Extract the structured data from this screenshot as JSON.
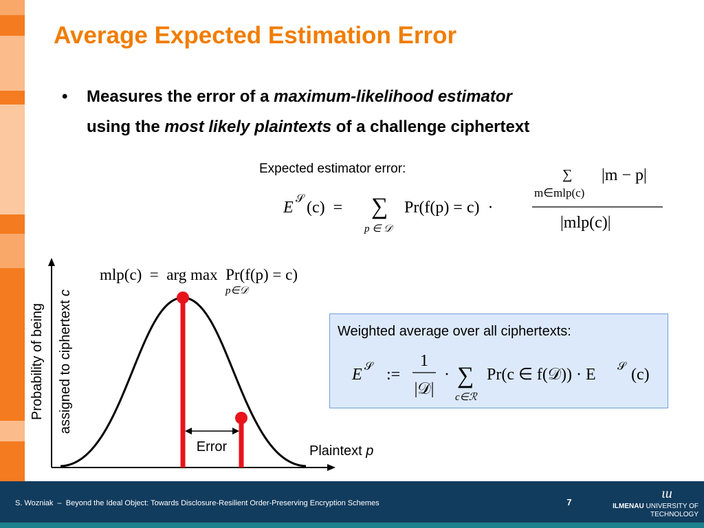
{
  "title": "Average Expected Estimation Error",
  "bullet": {
    "line1": [
      "Measures the error of a ",
      "maximum-likelihood estimator"
    ],
    "line2": [
      "using the ",
      "most likely plaintexts",
      " of a challenge ciphertext"
    ]
  },
  "expected": {
    "label": "Expected estimator error:",
    "lhs": "E",
    "lhs_sup": "𝒮",
    "lhs_arg": "(c)  =",
    "sum": "∑",
    "sum_sub": "p ∈ 𝒟",
    "term": "Pr(f(p) = c)  ·",
    "num_sum": "∑",
    "num_sub": "m∈mlp(c)",
    "num_abs": "|m − p|",
    "den": "|mlp(c)|"
  },
  "diagram": {
    "mlp": "mlp(c)  =  arg max  Pr(f(p) = c)",
    "mlp_sub": "p∈𝒟",
    "y_label_line1": "Probability of being",
    "y_label_line2": [
      "assigned to ciphertext ",
      "c"
    ],
    "x_label": [
      "Plaintext ",
      "p"
    ],
    "error_label": "Error"
  },
  "box": {
    "label": "Weighted average over all ciphertexts:",
    "lhs": "E",
    "lhs_sup": "𝒮",
    "assign": ":=",
    "num": "1",
    "den": "|𝒟|",
    "dot": "·",
    "sum": "∑",
    "sum_sub": "c∈ℛ",
    "term": "Pr(c ∈ f(𝒟)) · E",
    "term_sup": "𝒮",
    "term_arg": "(c)"
  },
  "footer": {
    "citation": "S. Wozniak  –  Beyond the Ideal Object: Towards Disclosure-Resilient Order-Preserving Encryption Schemes",
    "page": "7",
    "logo_mark": "ɩu",
    "logo_line1": [
      "ILMENAU",
      " UNIVERSITY OF"
    ],
    "logo_line2": "TECHNOLOGY"
  }
}
